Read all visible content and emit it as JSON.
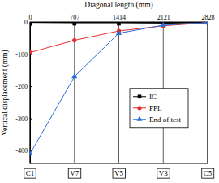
{
  "chart_data": {
    "type": "line",
    "x_label": "Diagonal length (mm)",
    "y_label": "Vertical displacement (mm)",
    "x": [
      0,
      707,
      1414,
      2121,
      2828
    ],
    "xlim": [
      0,
      2828
    ],
    "xticks": [
      0,
      707,
      1414,
      2121,
      2828
    ],
    "ylim": [
      -440,
      0
    ],
    "yticks": [
      -400,
      -300,
      -200,
      -100,
      0
    ],
    "grid": "x",
    "legend": "right",
    "annotations": [
      {
        "text": "C1",
        "x": 0
      },
      {
        "text": "V7",
        "x": 707
      },
      {
        "text": "V5",
        "x": 1414
      },
      {
        "text": "V3",
        "x": 2121
      },
      {
        "text": "C5",
        "x": 2828
      }
    ],
    "series": [
      {
        "name": "IC",
        "color": "#000000",
        "marker": "square",
        "values": [
          -6,
          -5,
          -5,
          -4,
          -2
        ]
      },
      {
        "name": "FPL",
        "color": "#e8302a",
        "marker": "circle",
        "values": [
          -95,
          -57,
          -28,
          -12,
          -2
        ]
      },
      {
        "name": "End of test",
        "color": "#2a6fdb",
        "marker": "triangle",
        "values": [
          -410,
          -170,
          -35,
          -10,
          -2
        ]
      }
    ]
  }
}
